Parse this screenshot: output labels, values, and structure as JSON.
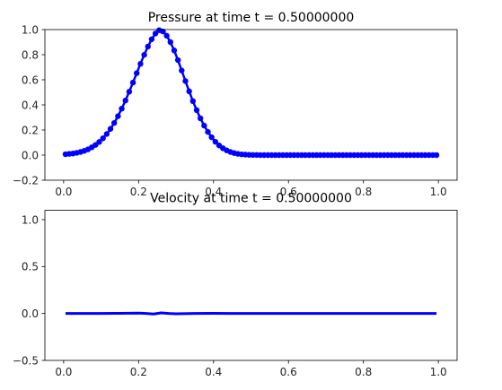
{
  "chart_data": [
    {
      "type": "line",
      "title": "Pressure at time t =      0.50000000",
      "xlabel": "",
      "ylabel": "",
      "xlim": [
        -0.05,
        1.05
      ],
      "ylim": [
        -0.2,
        1.0
      ],
      "xticks": [
        0.0,
        0.2,
        0.4,
        0.6,
        0.8,
        1.0
      ],
      "xtick_labels": [
        "0.0",
        "0.2",
        "0.4",
        "0.6",
        "0.8",
        "1.0"
      ],
      "yticks": [
        -0.2,
        0.0,
        0.2,
        0.4,
        0.6,
        0.8,
        1.0
      ],
      "ytick_labels": [
        "−0.2",
        "0.0",
        "0.2",
        "0.4",
        "0.6",
        "0.8",
        "1.0"
      ],
      "grid": false,
      "marker": "circle",
      "color": "#0000ff",
      "series": [
        {
          "x": [
            0.005,
            0.015,
            0.025,
            0.035,
            0.045,
            0.055,
            0.065,
            0.075,
            0.085,
            0.095,
            0.105,
            0.115,
            0.125,
            0.135,
            0.145,
            0.155,
            0.165,
            0.175,
            0.185,
            0.195,
            0.205,
            0.215,
            0.225,
            0.235,
            0.245,
            0.255,
            0.265,
            0.275,
            0.285,
            0.295,
            0.305,
            0.315,
            0.325,
            0.335,
            0.345,
            0.355,
            0.365,
            0.375,
            0.385,
            0.395,
            0.405,
            0.415,
            0.425,
            0.435,
            0.445,
            0.455,
            0.465,
            0.475,
            0.485,
            0.495,
            0.505,
            0.515,
            0.525,
            0.535,
            0.545,
            0.555,
            0.565,
            0.575,
            0.585,
            0.595,
            0.605,
            0.615,
            0.625,
            0.635,
            0.645,
            0.655,
            0.665,
            0.675,
            0.685,
            0.695,
            0.705,
            0.715,
            0.725,
            0.735,
            0.745,
            0.755,
            0.765,
            0.775,
            0.785,
            0.795,
            0.805,
            0.815,
            0.825,
            0.835,
            0.845,
            0.855,
            0.865,
            0.875,
            0.885,
            0.895,
            0.905,
            0.915,
            0.925,
            0.935,
            0.945,
            0.955,
            0.965,
            0.975,
            0.985,
            0.995
          ],
          "y": [
            0.007,
            0.01,
            0.013,
            0.018,
            0.025,
            0.034,
            0.046,
            0.062,
            0.081,
            0.105,
            0.134,
            0.168,
            0.209,
            0.256,
            0.31,
            0.37,
            0.435,
            0.505,
            0.578,
            0.653,
            0.727,
            0.799,
            0.865,
            0.923,
            0.969,
            0.995,
            0.985,
            0.951,
            0.9,
            0.834,
            0.757,
            0.674,
            0.59,
            0.508,
            0.43,
            0.358,
            0.293,
            0.235,
            0.185,
            0.142,
            0.106,
            0.077,
            0.055,
            0.038,
            0.025,
            0.016,
            0.01,
            0.006,
            0.004,
            0.002,
            0.001,
            0.001,
            0.0,
            0.0,
            0.0,
            0.0,
            0.0,
            0.0,
            0.0,
            0.0,
            0.0,
            0.0,
            0.0,
            0.0,
            0.0,
            0.0,
            0.0,
            0.0,
            0.0,
            0.0,
            0.0,
            0.0,
            0.0,
            0.0,
            0.0,
            0.0,
            0.0,
            0.0,
            0.0,
            0.0,
            0.0,
            0.0,
            0.0,
            0.0,
            0.0,
            0.0,
            0.0,
            0.0,
            0.0,
            0.0,
            0.0,
            0.0,
            0.0,
            0.0,
            0.0,
            0.0,
            0.0,
            0.0,
            0.0,
            0.0
          ]
        }
      ]
    },
    {
      "type": "line",
      "title": "Velocity at time t =      0.50000000",
      "xlabel": "",
      "ylabel": "",
      "xlim": [
        -0.05,
        1.05
      ],
      "ylim": [
        -0.5,
        1.1
      ],
      "xticks": [
        0.0,
        0.2,
        0.4,
        0.6,
        0.8,
        1.0
      ],
      "xtick_labels": [
        "0.0",
        "0.2",
        "0.4",
        "0.6",
        "0.8",
        "1.0"
      ],
      "yticks": [
        -0.5,
        0.0,
        0.5,
        1.0
      ],
      "ytick_labels": [
        "−0.5",
        "0.0",
        "0.5",
        "1.0"
      ],
      "grid": false,
      "marker": "none",
      "color": "#0000ff",
      "series": [
        {
          "x": [
            0.005,
            0.1,
            0.15,
            0.2,
            0.22,
            0.24,
            0.26,
            0.28,
            0.3,
            0.35,
            0.4,
            0.5,
            0.6,
            0.8,
            0.995
          ],
          "y": [
            0.0,
            0.0,
            0.002,
            0.004,
            0.0,
            -0.006,
            0.006,
            0.0,
            -0.003,
            0.0,
            0.001,
            0.0,
            0.0,
            0.0,
            0.0
          ]
        }
      ]
    }
  ]
}
